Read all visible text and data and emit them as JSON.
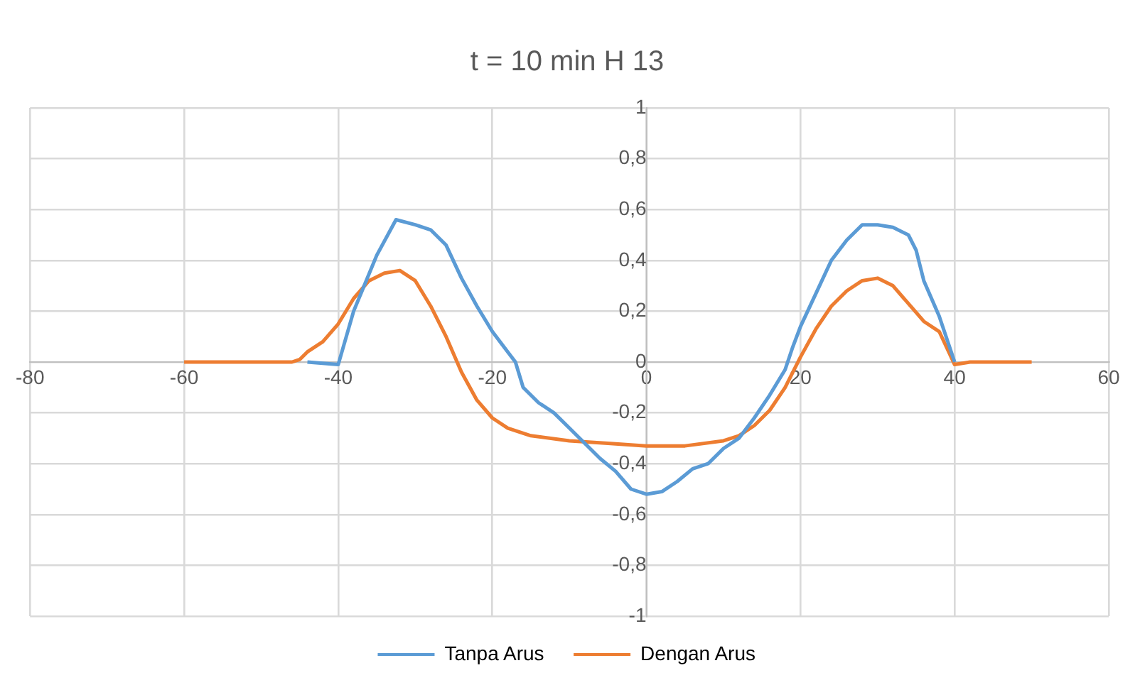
{
  "chart_data": {
    "type": "line",
    "title": "t = 10 min H 13",
    "xlim": [
      -80,
      60
    ],
    "xticks": [
      -80,
      -60,
      -40,
      -20,
      0,
      20,
      40,
      60
    ],
    "ylim": [
      -1,
      1
    ],
    "yticks": [
      {
        "value": -1,
        "label": "-1"
      },
      {
        "value": -0.8,
        "label": "-0,8"
      },
      {
        "value": -0.6,
        "label": "-0,6"
      },
      {
        "value": -0.4,
        "label": "-0,4"
      },
      {
        "value": -0.2,
        "label": "-0,2"
      },
      {
        "value": 0,
        "label": "0"
      },
      {
        "value": 0.2,
        "label": "0,2"
      },
      {
        "value": 0.4,
        "label": "0,4"
      },
      {
        "value": 0.6,
        "label": "0,6"
      },
      {
        "value": 0.8,
        "label": "0,8"
      },
      {
        "value": 1,
        "label": "1"
      }
    ],
    "grid": true,
    "legend": "bottom",
    "marker": "none",
    "line_style": "solid",
    "series": [
      {
        "name": "Tanpa Arus",
        "color": "#5b9bd5",
        "x": [
          -44,
          -40,
          -38,
          -35,
          -32.5,
          -30,
          -28,
          -26,
          -24,
          -22,
          -20,
          -18,
          -17,
          -16,
          -14,
          -12,
          -10,
          -8,
          -6,
          -4,
          -2,
          0,
          2,
          4,
          6,
          8,
          10,
          12,
          14,
          16,
          18,
          19,
          20,
          22,
          24,
          26,
          28,
          30,
          32,
          34,
          35,
          36,
          38,
          40
        ],
        "values": [
          0,
          -0.01,
          0.2,
          0.42,
          0.56,
          0.54,
          0.52,
          0.46,
          0.33,
          0.22,
          0.12,
          0.04,
          0,
          -0.1,
          -0.16,
          -0.2,
          -0.26,
          -0.32,
          -0.38,
          -0.43,
          -0.5,
          -0.52,
          -0.51,
          -0.47,
          -0.42,
          -0.4,
          -0.34,
          -0.3,
          -0.22,
          -0.13,
          -0.03,
          0.06,
          0.14,
          0.27,
          0.4,
          0.48,
          0.54,
          0.54,
          0.53,
          0.5,
          0.44,
          0.32,
          0.18,
          0
        ]
      },
      {
        "name": "Dengan Arus",
        "color": "#ed7d31",
        "x": [
          -60,
          -46,
          -45,
          -44,
          -42,
          -40,
          -38,
          -36,
          -34,
          -32,
          -30,
          -28,
          -26,
          -24,
          -22,
          -20,
          -18,
          -15,
          -10,
          -5,
          0,
          5,
          10,
          12,
          14,
          16,
          18,
          20,
          22,
          24,
          26,
          28,
          30,
          32,
          34,
          36,
          38,
          40,
          42,
          50
        ],
        "values": [
          0,
          0,
          0.01,
          0.04,
          0.08,
          0.15,
          0.25,
          0.32,
          0.35,
          0.36,
          0.32,
          0.22,
          0.1,
          -0.04,
          -0.15,
          -0.22,
          -0.26,
          -0.29,
          -0.31,
          -0.32,
          -0.33,
          -0.33,
          -0.31,
          -0.29,
          -0.25,
          -0.19,
          -0.1,
          0.02,
          0.13,
          0.22,
          0.28,
          0.32,
          0.33,
          0.3,
          0.23,
          0.16,
          0.12,
          -0.01,
          0,
          0
        ]
      }
    ]
  }
}
